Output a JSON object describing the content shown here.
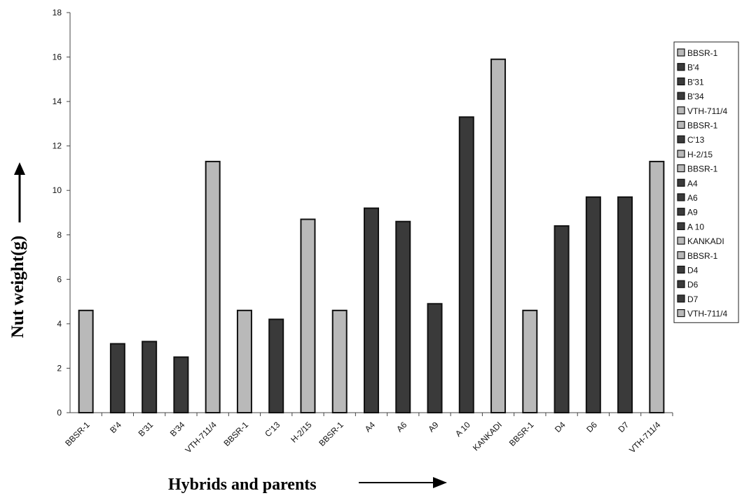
{
  "chart_data": {
    "type": "bar",
    "title": "",
    "xlabel": "Hybrids and parents",
    "ylabel": "Nut weight(g)",
    "ylim": [
      0,
      18
    ],
    "yticks": [
      0,
      2,
      4,
      6,
      8,
      10,
      12,
      14,
      16,
      18
    ],
    "grid": false,
    "legend_position": "right",
    "categories": [
      "BBSR-1",
      "B'4",
      "B'31",
      "B'34",
      "VTH-711/4",
      "BBSR-1",
      "C'13",
      "H-2/15",
      "BBSR-1",
      "A4",
      "A6",
      "A9",
      "A 10",
      "KANKADI",
      "BBSR-1",
      "D4",
      "D6",
      "D7",
      "VTH-711/4"
    ],
    "values": [
      4.6,
      3.1,
      3.2,
      2.5,
      11.3,
      4.6,
      4.2,
      8.7,
      4.6,
      9.2,
      8.6,
      4.9,
      13.3,
      15.9,
      4.6,
      8.4,
      9.7,
      9.7,
      11.3
    ],
    "bar_shade": [
      "light",
      "dark",
      "dark",
      "dark",
      "light",
      "light",
      "dark",
      "light",
      "light",
      "dark",
      "dark",
      "dark",
      "dark",
      "light",
      "light",
      "dark",
      "dark",
      "dark",
      "light"
    ],
    "legend": [
      "BBSR-1",
      "B'4",
      "B'31",
      "B'34",
      "VTH-711/4",
      "BBSR-1",
      "C'13",
      "H-2/15",
      "BBSR-1",
      "A4",
      "A6",
      "A9",
      "A 10",
      "KANKADI",
      "BBSR-1",
      "D4",
      "D6",
      "D7",
      "VTH-711/4"
    ],
    "colors": {
      "light": "#b9b9b9",
      "dark": "#3a3a3a",
      "outline": "#111111"
    }
  }
}
